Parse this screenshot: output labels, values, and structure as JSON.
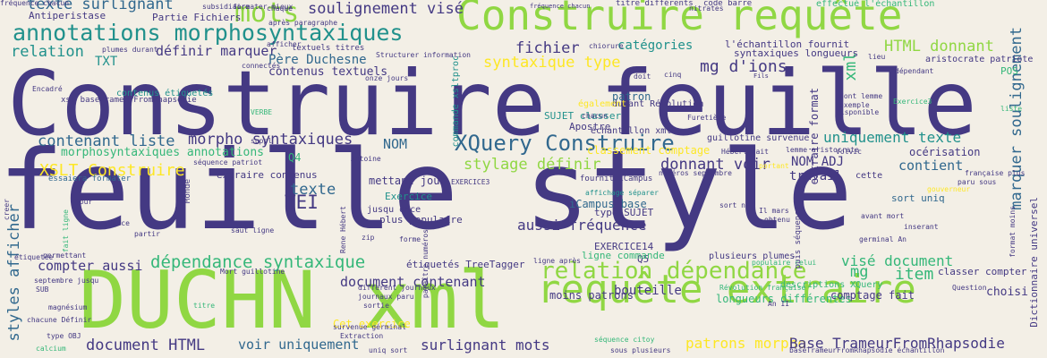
{
  "colors": {
    "background": "#f3efe6",
    "palette": [
      "#443983",
      "#31688e",
      "#21918c",
      "#35b779",
      "#90d743",
      "#fde725"
    ]
  },
  "words": [
    {
      "text": "Construire feuille",
      "color": "#443983"
    },
    {
      "text": "feuille style",
      "color": "#443983"
    },
    {
      "text": "DUCHN xml",
      "color": "#90d743"
    },
    {
      "text": "Construire requête",
      "color": "#90d743"
    },
    {
      "text": "requête extraire",
      "color": "#90d743"
    },
    {
      "text": "annotations morphosyntaxiques",
      "color": "#21918c"
    },
    {
      "text": "relation dépendance",
      "color": "#90d743"
    },
    {
      "text": "XQuery Construire",
      "color": "#31688e"
    },
    {
      "text": "dépendance syntaxique",
      "color": "#35b779"
    },
    {
      "text": "texte surlignant",
      "color": "#31688e"
    },
    {
      "text": "soulignement visé",
      "color": "#443983"
    },
    {
      "text": "définir marquer",
      "color": "#443983"
    },
    {
      "text": "Père Duchesne",
      "color": "#31688e"
    },
    {
      "text": "contenus textuels",
      "color": "#443983"
    },
    {
      "text": "syntaxique type",
      "color": "#fde725"
    },
    {
      "text": "mg d'ions",
      "color": "#443983"
    },
    {
      "text": "catégories",
      "color": "#21918c"
    },
    {
      "text": "fichier",
      "color": "#443983"
    },
    {
      "text": "HTML donnant",
      "color": "#90d743"
    },
    {
      "text": "relation",
      "color": "#21918c"
    },
    {
      "text": "TXT",
      "color": "#21918c"
    },
    {
      "text": "mots",
      "color": "#90d743"
    },
    {
      "text": "morpho syntaxiques",
      "color": "#443983"
    },
    {
      "text": "contenant liste",
      "color": "#31688e"
    },
    {
      "text": "morphosyntaxiques annotations",
      "color": "#35b779"
    },
    {
      "text": "XSLT Construire",
      "color": "#fde725"
    },
    {
      "text": "stylage définir",
      "color": "#90d743"
    },
    {
      "text": "donnant voir",
      "color": "#443983"
    },
    {
      "text": "uniquement texte",
      "color": "#21918c"
    },
    {
      "text": "NOM ADJ",
      "color": "#443983"
    },
    {
      "text": "NOM",
      "color": "#31688e"
    },
    {
      "text": "contient",
      "color": "#31688e"
    },
    {
      "text": "texte",
      "color": "#31688e"
    },
    {
      "text": "TEI",
      "color": "#443983"
    },
    {
      "text": "aussi fréquence",
      "color": "#443983"
    },
    {
      "text": "compter aussi",
      "color": "#443983"
    },
    {
      "text": "document contenant",
      "color": "#443983"
    },
    {
      "text": "visé document",
      "color": "#35b779"
    },
    {
      "text": "item",
      "color": "#35b779"
    },
    {
      "text": "mg",
      "color": "#35b779"
    },
    {
      "text": "document HTML",
      "color": "#443983"
    },
    {
      "text": "voir uniquement",
      "color": "#31688e"
    },
    {
      "text": "surlignant mots",
      "color": "#443983"
    },
    {
      "text": "patrons morpho",
      "color": "#fde725"
    },
    {
      "text": "Base TrameurFromRhapsodie",
      "color": "#443983"
    },
    {
      "text": "bouteille",
      "color": "#443983"
    },
    {
      "text": "styles afficher",
      "color": "#31688e"
    },
    {
      "text": "marquer soulignement",
      "color": "#31688e"
    },
    {
      "text": "Dictionnaire universel",
      "color": "#443983"
    },
    {
      "text": "extraire format",
      "color": "#443983"
    },
    {
      "text": "xml",
      "color": "#35b779"
    },
    {
      "text": "commande xsltproc",
      "color": "#21918c"
    },
    {
      "text": "Cet exercice",
      "color": "#fde725"
    },
    {
      "text": "moins patrons",
      "color": "#443983"
    },
    {
      "text": "longueurs différentes",
      "color": "#35b779"
    },
    {
      "text": "descriptions XQuery",
      "color": "#35b779"
    },
    {
      "text": "comptage fait",
      "color": "#443983"
    },
    {
      "text": "classer compter",
      "color": "#443983"
    },
    {
      "text": "choisi",
      "color": "#443983"
    },
    {
      "text": "EXERCICE14",
      "color": "#443983"
    },
    {
      "text": "Q5",
      "color": "#443983"
    },
    {
      "text": "ligne commande",
      "color": "#35b779"
    },
    {
      "text": "étiquetés TreeTagger",
      "color": "#443983"
    },
    {
      "text": "plusieurs plumes",
      "color": "#443983"
    },
    {
      "text": "type SUJET",
      "color": "#443983"
    },
    {
      "text": "iCampus base",
      "color": "#31688e"
    },
    {
      "text": "mettant jour",
      "color": "#443983"
    },
    {
      "text": "Exercice",
      "color": "#21918c"
    },
    {
      "text": "plus populaire",
      "color": "#443983"
    },
    {
      "text": "jusqu once",
      "color": "#443983"
    },
    {
      "text": "extraire contenus",
      "color": "#443983"
    },
    {
      "text": "Q4",
      "color": "#35b779"
    },
    {
      "text": "travail",
      "color": "#443983"
    },
    {
      "text": "sort uniq",
      "color": "#31688e"
    },
    {
      "text": "cette",
      "color": "#443983"
    },
    {
      "text": "océrisation",
      "color": "#443983"
    },
    {
      "text": "SUJET classer",
      "color": "#21918c"
    },
    {
      "text": "patron",
      "color": "#31688e"
    },
    {
      "text": "Apostre",
      "color": "#443983"
    },
    {
      "text": "guillotine survenue",
      "color": "#443983"
    },
    {
      "text": "échantillon xml",
      "color": "#443983"
    },
    {
      "text": "durant Révolution",
      "color": "#443983"
    },
    {
      "text": "également",
      "color": "#fde725"
    },
    {
      "text": "l'échantillon fournit",
      "color": "#443983"
    },
    {
      "text": "syntaxiques longueurs",
      "color": "#443983"
    },
    {
      "text": "POS",
      "color": "#35b779"
    },
    {
      "text": "aristocrate patriote",
      "color": "#443983"
    },
    {
      "text": "Antiperistase",
      "color": "#443983"
    },
    {
      "text": "Partie Fichiers",
      "color": "#443983"
    },
    {
      "text": "formater mieux",
      "color": "#443983"
    },
    {
      "text": "après paragraphe",
      "color": "#443983"
    },
    {
      "text": "titre différents",
      "color": "#443983"
    },
    {
      "text": "code barre",
      "color": "#443983"
    },
    {
      "text": "effectué l'échantillon",
      "color": "#35b779"
    },
    {
      "text": "fréquence chacun",
      "color": "#443983"
    },
    {
      "text": "textuels titres",
      "color": "#443983"
    },
    {
      "text": "contenus étiquetés",
      "color": "#21918c"
    },
    {
      "text": "xsl baseTrameurFromRhapsodie",
      "color": "#443983"
    },
    {
      "text": "Encadré",
      "color": "#443983"
    },
    {
      "text": "essaiera formater",
      "color": "#31688e"
    },
    {
      "text": "séquence patriot",
      "color": "#443983"
    },
    {
      "text": "Antoine",
      "color": "#443983"
    },
    {
      "text": "fournit iCampus",
      "color": "#443983"
    },
    {
      "text": "classement comptage",
      "color": "#fde725"
    },
    {
      "text": "affichage séparer",
      "color": "#21918c"
    },
    {
      "text": "numéros septembre",
      "color": "#443983"
    },
    {
      "text": "Hébert fait",
      "color": "#443983"
    },
    {
      "text": "lemme aristocrate",
      "color": "#443983"
    },
    {
      "text": "française plus",
      "color": "#443983"
    },
    {
      "text": "paru sous",
      "color": "#443983"
    },
    {
      "text": "gouverneur",
      "color": "#fde725"
    },
    {
      "text": "étiquetée",
      "color": "#443983"
    },
    {
      "text": "permettant",
      "color": "#443983"
    },
    {
      "text": "septembre jusqu",
      "color": "#443983"
    },
    {
      "text": "Mort guillotine",
      "color": "#443983"
    },
    {
      "text": "chacune Définir",
      "color": "#443983"
    },
    {
      "text": "magnésium",
      "color": "#443983"
    },
    {
      "text": "calcium",
      "color": "#35b779"
    },
    {
      "text": "type OBJ",
      "color": "#443983"
    },
    {
      "text": "sortie",
      "color": "#443983"
    },
    {
      "text": "survenue gérminal",
      "color": "#443983"
    },
    {
      "text": "uniq sort",
      "color": "#443983"
    },
    {
      "text": "séquence citoy",
      "color": "#35b779"
    },
    {
      "text": "sous plusieurs",
      "color": "#443983"
    },
    {
      "text": "baseTrameurFromRhapsodie échantillon",
      "color": "#443983"
    },
    {
      "text": "Révolution française",
      "color": "#35b779"
    },
    {
      "text": "populaire celui",
      "color": "#35b779"
    },
    {
      "text": "ligne après",
      "color": "#443983"
    },
    {
      "text": "different journaux",
      "color": "#443983"
    },
    {
      "text": "journaux paru",
      "color": "#443983"
    },
    {
      "text": "Fils",
      "color": "#443983"
    },
    {
      "text": "lieu",
      "color": "#443983"
    },
    {
      "text": "dépendant",
      "color": "#443983"
    },
    {
      "text": "dont lemme",
      "color": "#443983"
    },
    {
      "text": "exemple",
      "color": "#443983"
    },
    {
      "text": "disponible",
      "color": "#443983"
    },
    {
      "text": "Exercice3",
      "color": "#35b779"
    },
    {
      "text": "liste",
      "color": "#35b779"
    },
    {
      "text": "Question",
      "color": "#443983"
    },
    {
      "text": "An II",
      "color": "#443983"
    },
    {
      "text": "obtenu",
      "color": "#443983"
    },
    {
      "text": "Il mars",
      "color": "#443983"
    },
    {
      "text": "sort nr",
      "color": "#443983"
    },
    {
      "text": "avant mort",
      "color": "#443983"
    },
    {
      "text": "inserant",
      "color": "#443983"
    },
    {
      "text": "germinal An",
      "color": "#443983"
    },
    {
      "text": "Volvic",
      "color": "#443983"
    },
    {
      "text": "portant",
      "color": "#fde725"
    },
    {
      "text": "Furetière",
      "color": "#443983"
    },
    {
      "text": "plumes durant",
      "color": "#443983"
    },
    {
      "text": "afficher",
      "color": "#443983"
    },
    {
      "text": "Structurer information",
      "color": "#443983"
    },
    {
      "text": "onze jours",
      "color": "#443983"
    },
    {
      "text": "chiorure",
      "color": "#443983"
    },
    {
      "text": "doit",
      "color": "#443983"
    },
    {
      "text": "cinq",
      "color": "#443983"
    },
    {
      "text": "VERBE",
      "color": "#35b779"
    },
    {
      "text": "suppl",
      "color": "#443983"
    },
    {
      "text": "Rene Hébert",
      "color": "#443983"
    },
    {
      "text": "zip",
      "color": "#443983"
    },
    {
      "text": "forme",
      "color": "#443983"
    },
    {
      "text": "saut ligne",
      "color": "#443983"
    },
    {
      "text": "source",
      "color": "#443983"
    },
    {
      "text": "partir",
      "color": "#443983"
    },
    {
      "text": "jour",
      "color": "#443983"
    },
    {
      "text": "creer",
      "color": "#443983"
    },
    {
      "text": "SUB",
      "color": "#443983"
    },
    {
      "text": "titre",
      "color": "#35b779"
    },
    {
      "text": "Extraction",
      "color": "#443983"
    },
    {
      "text": "connectés",
      "color": "#443983"
    },
    {
      "text": "chaque",
      "color": "#443983"
    },
    {
      "text": "EXERCICE3",
      "color": "#443983"
    },
    {
      "text": "Monde",
      "color": "#443983"
    },
    {
      "text": "fait ligne",
      "color": "#35b779"
    },
    {
      "text": "puis séquence",
      "color": "#443983"
    },
    {
      "text": "format moins",
      "color": "#443983"
    },
    {
      "text": "paraître numéros",
      "color": "#443983"
    },
    {
      "text": "subsidiaire",
      "color": "#443983"
    },
    {
      "text": "chacun",
      "color": "#443983"
    },
    {
      "text": "nitrates",
      "color": "#443983"
    },
    {
      "text": "fréquence chacun",
      "color": "#443983"
    }
  ]
}
